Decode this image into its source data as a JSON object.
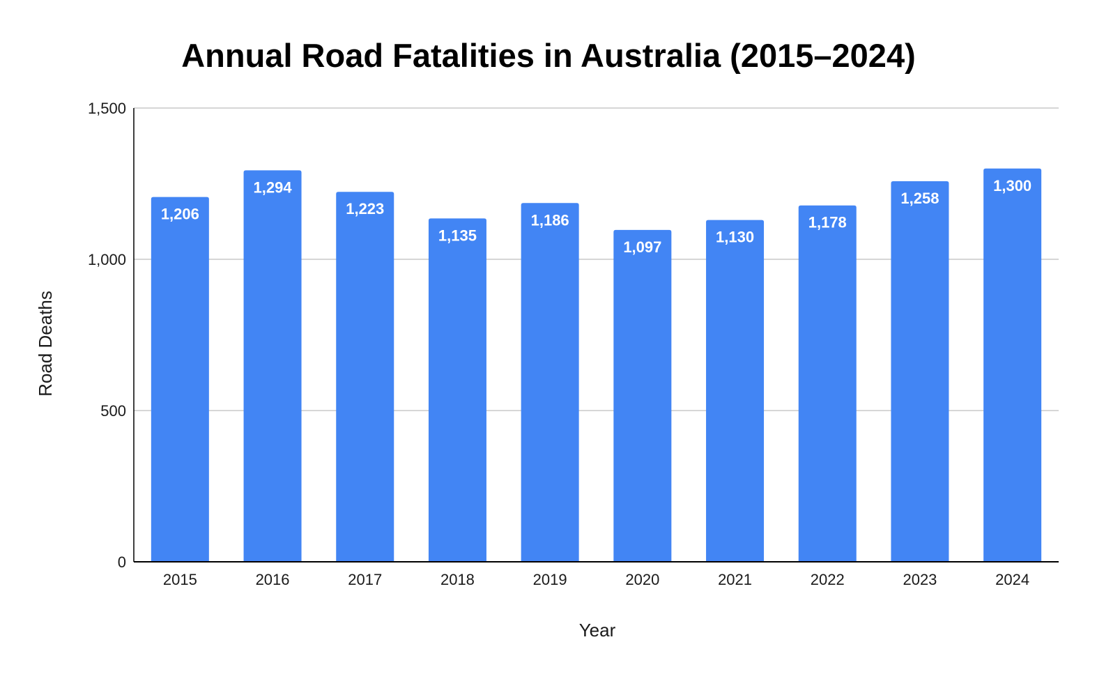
{
  "chart_data": {
    "type": "bar",
    "title": "Annual Road Fatalities in Australia (2015–2024)",
    "xlabel": "Year",
    "ylabel": "Road Deaths",
    "categories": [
      "2015",
      "2016",
      "2017",
      "2018",
      "2019",
      "2020",
      "2021",
      "2022",
      "2023",
      "2024"
    ],
    "values": [
      1206,
      1294,
      1223,
      1135,
      1186,
      1097,
      1130,
      1178,
      1258,
      1300
    ],
    "data_labels": [
      "1,206",
      "1,294",
      "1,223",
      "1,135",
      "1,186",
      "1,097",
      "1,130",
      "1,178",
      "1,258",
      "1,300"
    ],
    "ylim": [
      0,
      1500
    ],
    "yticks": [
      0,
      500,
      1000,
      1500
    ],
    "ytick_labels": [
      "0",
      "500",
      "1,000",
      "1,500"
    ],
    "grid": true,
    "legend": "none",
    "colors": {
      "bar": "#4285f4",
      "grid": "#c8c8c8",
      "axis": "#000000"
    }
  }
}
